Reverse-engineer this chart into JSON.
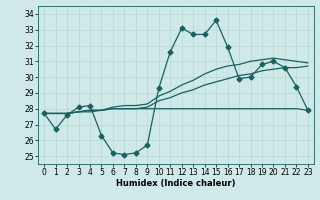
{
  "xlabel": "Humidex (Indice chaleur)",
  "bg_color": "#cfe8e8",
  "grid_color": "#b8d8d8",
  "line_color": "#1a6060",
  "xlim": [
    -0.5,
    23.5
  ],
  "ylim": [
    24.5,
    34.5
  ],
  "xticks": [
    0,
    1,
    2,
    3,
    4,
    5,
    6,
    7,
    8,
    9,
    10,
    11,
    12,
    13,
    14,
    15,
    16,
    17,
    18,
    19,
    20,
    21,
    22,
    23
  ],
  "yticks": [
    25,
    26,
    27,
    28,
    29,
    30,
    31,
    32,
    33,
    34
  ],
  "series": [
    [
      27.7,
      26.7,
      27.6,
      28.1,
      28.2,
      26.3,
      25.2,
      25.1,
      25.2,
      25.7,
      29.3,
      31.6,
      33.1,
      32.7,
      32.7,
      33.6,
      31.9,
      29.9,
      30.0,
      30.8,
      31.0,
      30.6,
      29.4,
      27.9
    ],
    [
      27.7,
      27.7,
      27.7,
      27.8,
      27.9,
      27.9,
      28.0,
      28.0,
      28.0,
      28.1,
      28.5,
      28.7,
      29.0,
      29.2,
      29.5,
      29.7,
      29.9,
      30.1,
      30.2,
      30.4,
      30.5,
      30.6,
      30.6,
      30.7
    ],
    [
      27.7,
      27.7,
      27.7,
      27.8,
      27.9,
      27.9,
      28.1,
      28.2,
      28.2,
      28.3,
      28.8,
      29.1,
      29.5,
      29.8,
      30.2,
      30.5,
      30.7,
      30.8,
      31.0,
      31.1,
      31.2,
      31.1,
      31.0,
      30.9
    ],
    [
      27.7,
      27.7,
      27.7,
      27.8,
      27.8,
      27.9,
      28.0,
      28.0,
      28.0,
      28.0,
      28.0,
      28.0,
      28.0,
      28.0,
      28.0,
      28.0,
      28.0,
      28.0,
      28.0,
      28.0,
      28.0,
      28.0,
      28.0,
      27.9
    ]
  ],
  "marker": "D",
  "markersize": 2.5,
  "linewidth": 0.9,
  "axis_fontsize": 6,
  "tick_fontsize": 5.5
}
